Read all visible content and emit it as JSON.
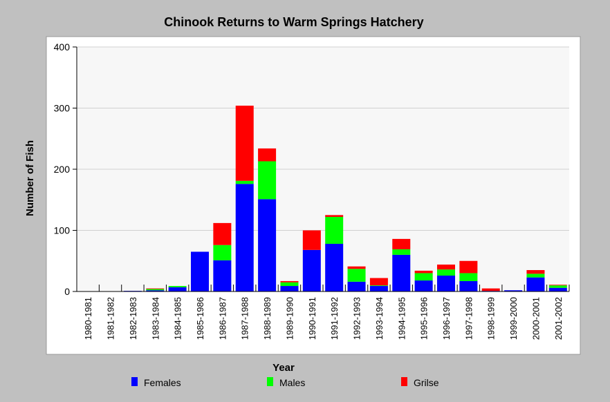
{
  "chart_data": {
    "type": "bar",
    "stacked": true,
    "title": "Chinook Returns to Warm Springs Hatchery",
    "xlabel": "Year",
    "ylabel": "Number of Fish",
    "ylim": [
      0,
      400
    ],
    "yticks": [
      0,
      100,
      200,
      300,
      400
    ],
    "grid": true,
    "legend_position": "bottom",
    "categories": [
      "1980-1981",
      "1981-1982",
      "1982-1983",
      "1983-1984",
      "1984-1985",
      "1985-1986",
      "1986-1987",
      "1987-1988",
      "1988-1989",
      "1989-1990",
      "1990-1991",
      "1991-1992",
      "1992-1993",
      "1993-1994",
      "1994-1995",
      "1995-1996",
      "1996-1997",
      "1997-1998",
      "1998-1999",
      "1999-2000",
      "2000-2001",
      "2001-2002"
    ],
    "series": [
      {
        "name": "Females",
        "color": "#0000ff",
        "values": [
          0,
          0,
          1,
          2,
          7,
          65,
          51,
          176,
          151,
          9,
          68,
          78,
          16,
          9,
          60,
          18,
          26,
          17,
          1,
          2,
          23,
          6
        ]
      },
      {
        "name": "Males",
        "color": "#00ff00",
        "values": [
          0,
          0,
          0,
          2,
          2,
          0,
          25,
          5,
          62,
          6,
          0,
          44,
          21,
          1,
          9,
          12,
          10,
          13,
          0,
          0,
          6,
          4
        ]
      },
      {
        "name": "Grilse",
        "color": "#ff0000",
        "values": [
          0,
          0,
          0,
          1,
          0,
          0,
          36,
          123,
          21,
          2,
          32,
          3,
          4,
          12,
          17,
          4,
          8,
          20,
          4,
          0,
          6,
          1
        ]
      }
    ]
  }
}
